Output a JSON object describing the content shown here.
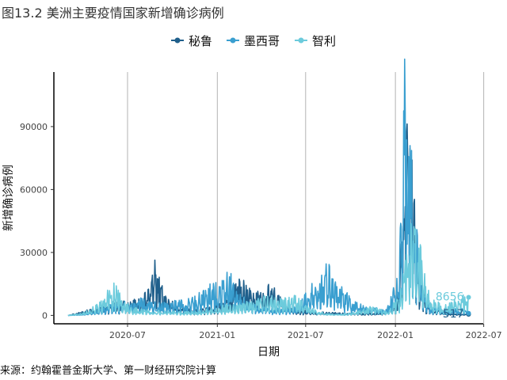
{
  "figure": {
    "title": "图13.2 美洲主要疫情国家新增确诊病例",
    "source": "来源：约翰霍普金斯大学、第一财经研究院计算"
  },
  "chart_data": {
    "type": "line",
    "xlabel": "日期",
    "ylabel": "新增确诊病例",
    "x_range": [
      "2020-02-01",
      "2022-06-30"
    ],
    "ylim": [
      -4000,
      116000
    ],
    "y_ticks": [
      0,
      30000,
      60000,
      90000
    ],
    "y_tick_labels": [
      "0",
      "30000",
      "60000",
      "90000"
    ],
    "x_ticks": [
      "2020-07-01",
      "2021-01-01",
      "2021-07-01",
      "2022-01-01",
      "2022-07-01"
    ],
    "x_tick_labels": [
      "2020-07",
      "2021-01",
      "2021-07",
      "2022-01",
      "2022-07"
    ],
    "grid": "vertical major lines",
    "legend_position": "top",
    "series": [
      {
        "name": "秘鲁",
        "color": "#1f5f8b",
        "end_label": "517",
        "points": [
          [
            "2020-03-01",
            0
          ],
          [
            "2020-04-01",
            1500
          ],
          [
            "2020-05-01",
            3500
          ],
          [
            "2020-06-01",
            5000
          ],
          [
            "2020-07-15",
            6000
          ],
          [
            "2020-08-10",
            9000
          ],
          [
            "2020-08-25",
            21000
          ],
          [
            "2020-09-15",
            8000
          ],
          [
            "2020-10-15",
            3500
          ],
          [
            "2020-11-15",
            2000
          ],
          [
            "2020-12-15",
            3000
          ],
          [
            "2021-01-15",
            5000
          ],
          [
            "2021-02-05",
            12000
          ],
          [
            "2021-02-20",
            15000
          ],
          [
            "2021-03-15",
            8000
          ],
          [
            "2021-04-05",
            11000
          ],
          [
            "2021-04-20",
            12000
          ],
          [
            "2021-05-15",
            6000
          ],
          [
            "2021-06-15",
            2500
          ],
          [
            "2021-07-15",
            1500
          ],
          [
            "2021-08-15",
            1200
          ],
          [
            "2021-09-15",
            1000
          ],
          [
            "2021-10-15",
            800
          ],
          [
            "2021-11-15",
            1000
          ],
          [
            "2021-12-15",
            1500
          ],
          [
            "2022-01-05",
            6000
          ],
          [
            "2022-01-20",
            45000
          ],
          [
            "2022-01-27",
            100000
          ],
          [
            "2022-02-05",
            60000
          ],
          [
            "2022-02-15",
            25000
          ],
          [
            "2022-03-01",
            8000
          ],
          [
            "2022-03-15",
            3000
          ],
          [
            "2022-04-15",
            1000
          ],
          [
            "2022-05-15",
            400
          ],
          [
            "2022-05-31",
            517
          ]
        ]
      },
      {
        "name": "墨西哥",
        "color": "#3a9fd0",
        "end_label": "",
        "points": [
          [
            "2020-03-01",
            0
          ],
          [
            "2020-04-01",
            500
          ],
          [
            "2020-05-01",
            2500
          ],
          [
            "2020-06-01",
            4500
          ],
          [
            "2020-07-01",
            6000
          ],
          [
            "2020-08-01",
            6500
          ],
          [
            "2020-09-01",
            5000
          ],
          [
            "2020-10-01",
            5500
          ],
          [
            "2020-11-01",
            6000
          ],
          [
            "2020-12-01",
            9000
          ],
          [
            "2020-12-20",
            12000
          ],
          [
            "2021-01-10",
            13000
          ],
          [
            "2021-01-25",
            18000
          ],
          [
            "2021-02-15",
            8000
          ],
          [
            "2021-03-15",
            5000
          ],
          [
            "2021-04-15",
            3000
          ],
          [
            "2021-05-15",
            2500
          ],
          [
            "2021-06-15",
            4000
          ],
          [
            "2021-07-15",
            12000
          ],
          [
            "2021-08-10",
            19000
          ],
          [
            "2021-08-25",
            22000
          ],
          [
            "2021-09-15",
            10000
          ],
          [
            "2021-10-15",
            5000
          ],
          [
            "2021-11-15",
            3000
          ],
          [
            "2021-12-15",
            2500
          ],
          [
            "2022-01-05",
            15000
          ],
          [
            "2022-01-15",
            45000
          ],
          [
            "2022-01-20",
            110000
          ],
          [
            "2022-01-28",
            80000
          ],
          [
            "2022-02-10",
            40000
          ],
          [
            "2022-02-25",
            12000
          ],
          [
            "2022-03-15",
            4000
          ],
          [
            "2022-04-15",
            2000
          ],
          [
            "2022-05-15",
            3000
          ],
          [
            "2022-05-31",
            1000
          ]
        ]
      },
      {
        "name": "智利",
        "color": "#6ccbdc",
        "end_label": "8656",
        "points": [
          [
            "2020-03-01",
            0
          ],
          [
            "2020-04-01",
            1000
          ],
          [
            "2020-05-01",
            5000
          ],
          [
            "2020-06-05",
            13000
          ],
          [
            "2020-06-20",
            6000
          ],
          [
            "2020-07-15",
            3000
          ],
          [
            "2020-08-15",
            2000
          ],
          [
            "2020-09-15",
            1800
          ],
          [
            "2020-10-15",
            1500
          ],
          [
            "2020-11-15",
            1400
          ],
          [
            "2020-12-15",
            2500
          ],
          [
            "2021-01-15",
            4000
          ],
          [
            "2021-02-15",
            4000
          ],
          [
            "2021-03-15",
            6500
          ],
          [
            "2021-04-15",
            7500
          ],
          [
            "2021-05-15",
            6500
          ],
          [
            "2021-06-10",
            7500
          ],
          [
            "2021-07-10",
            3000
          ],
          [
            "2021-08-10",
            800
          ],
          [
            "2021-09-15",
            500
          ],
          [
            "2021-10-15",
            1500
          ],
          [
            "2021-11-15",
            3500
          ],
          [
            "2021-12-15",
            1500
          ],
          [
            "2022-01-10",
            8000
          ],
          [
            "2022-01-25",
            25000
          ],
          [
            "2022-02-05",
            40000
          ],
          [
            "2022-02-20",
            28000
          ],
          [
            "2022-03-05",
            12000
          ],
          [
            "2022-03-20",
            6000
          ],
          [
            "2022-04-15",
            4000
          ],
          [
            "2022-05-10",
            7000
          ],
          [
            "2022-05-31",
            8656
          ]
        ]
      }
    ]
  }
}
